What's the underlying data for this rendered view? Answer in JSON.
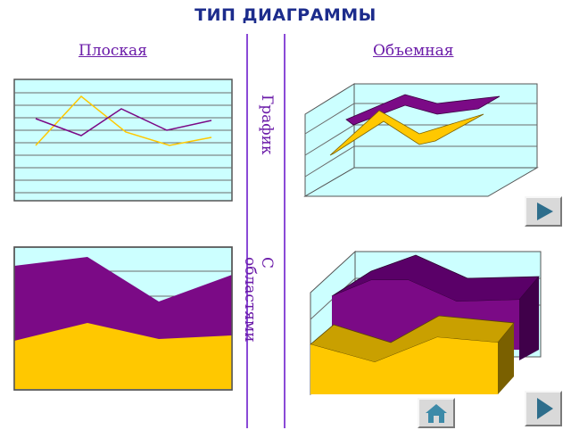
{
  "title": "ТИП ДИАГРАММЫ",
  "columns": {
    "flat": "Плоская",
    "volume": "Объемная"
  },
  "rows": {
    "line": "График",
    "area": "С областями"
  },
  "colors": {
    "purple": "#7b0a86",
    "yellow": "#ffc800",
    "fill": "#ccffff",
    "grid": "#6b6b6b"
  },
  "nav": {
    "next_icon": "play-icon",
    "home_icon": "home-icon"
  }
}
